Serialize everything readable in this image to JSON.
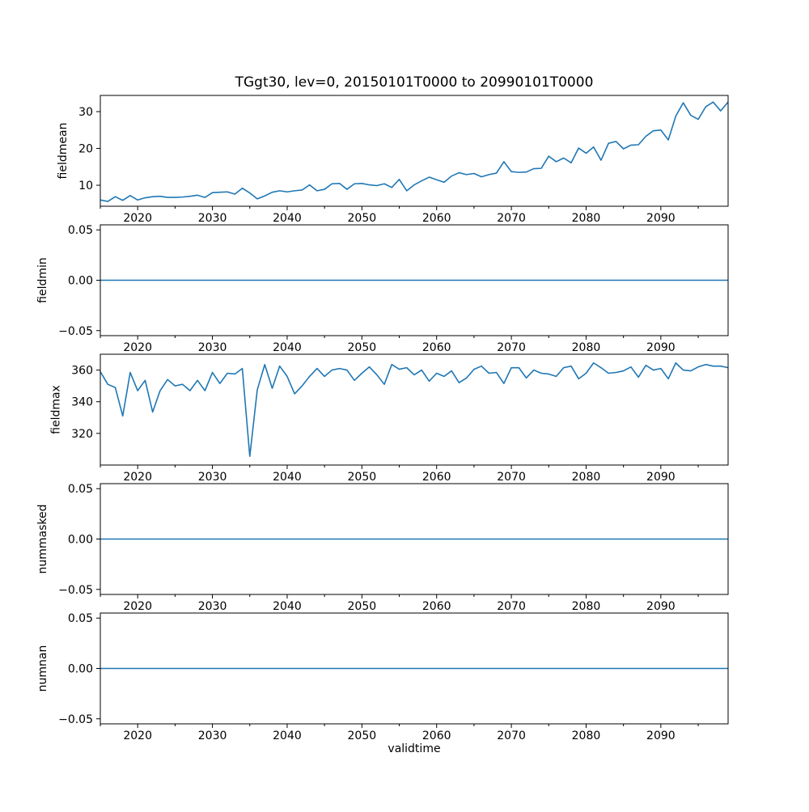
{
  "figure": {
    "title": "TGgt30, lev=0, 20150101T0000 to 20990101T0000",
    "xlabel": "validtime",
    "line_color": "#1f77b4",
    "background": "#ffffff"
  },
  "chart_data": {
    "type": "line",
    "title": "TGgt30, lev=0, 20150101T0000 to 20990101T0000",
    "xlabel": "validtime",
    "x_start_year": 2015,
    "x_end_year": 2099,
    "x_step": 1,
    "xlim": [
      2015,
      2099
    ],
    "x_major_ticks": [
      2020,
      2030,
      2040,
      2050,
      2060,
      2070,
      2080,
      2090
    ],
    "x_major_tick_labels": [
      "2020",
      "2030",
      "2040",
      "2050",
      "2060",
      "2070",
      "2080",
      "2090"
    ],
    "x_minor_ticks": [
      2015,
      2025,
      2035,
      2045,
      2055,
      2065,
      2075,
      2085,
      2095
    ],
    "grid": false,
    "legend": "none",
    "panels": [
      {
        "id": "fieldmean",
        "ylabel": "fieldmean",
        "ylim": [
          4.3,
          34.4
        ],
        "yticks": [
          10,
          20,
          30
        ],
        "ytick_labels": [
          "10",
          "20",
          "30"
        ],
        "values": [
          6.0,
          5.6,
          6.9,
          5.9,
          7.2,
          6.0,
          6.6,
          6.9,
          7.0,
          6.7,
          6.7,
          6.8,
          7.0,
          7.3,
          6.7,
          8.0,
          8.1,
          8.2,
          7.6,
          9.2,
          7.9,
          6.3,
          7.1,
          8.1,
          8.5,
          8.2,
          8.5,
          8.7,
          10.1,
          8.5,
          8.9,
          10.4,
          10.5,
          8.9,
          10.4,
          10.5,
          10.1,
          9.9,
          10.4,
          9.4,
          11.6,
          8.5,
          10.1,
          11.2,
          12.2,
          11.5,
          10.8,
          12.5,
          13.4,
          12.9,
          13.2,
          12.3,
          12.9,
          13.3,
          16.4,
          13.7,
          13.5,
          13.6,
          14.5,
          14.6,
          17.9,
          16.4,
          17.4,
          16.1,
          20.1,
          18.7,
          20.4,
          16.8,
          21.4,
          21.9,
          19.9,
          20.9,
          21.0,
          23.3,
          24.8,
          25.0,
          22.3,
          28.8,
          32.4,
          29.0,
          27.9,
          31.3,
          32.6,
          30.2,
          32.6
        ]
      },
      {
        "id": "fieldmin",
        "ylabel": "fieldmin",
        "ylim": [
          -0.055,
          0.055
        ],
        "yticks": [
          -0.05,
          0.0,
          0.05
        ],
        "ytick_labels": [
          "−0.05",
          "0.00",
          "0.05"
        ],
        "constant_value": 0
      },
      {
        "id": "fieldmax",
        "ylabel": "fieldmax",
        "ylim": [
          300,
          370
        ],
        "yticks": [
          320,
          340,
          360
        ],
        "ytick_labels": [
          "320",
          "340",
          "360"
        ],
        "values": [
          359,
          351,
          349,
          331,
          358.5,
          347,
          353.5,
          333.5,
          347,
          354,
          350,
          351,
          347,
          353.5,
          347,
          358.5,
          351.5,
          358,
          357.5,
          361,
          305.5,
          347.5,
          363.5,
          348.5,
          362.5,
          356,
          345,
          350,
          356,
          361,
          356,
          360,
          361,
          360,
          353.5,
          358,
          362,
          357,
          351,
          363.5,
          360.5,
          361.5,
          357,
          360,
          353,
          358,
          356,
          359.5,
          352,
          355,
          360.5,
          362.5,
          358,
          358.5,
          351.5,
          361.5,
          361.5,
          355,
          360,
          358,
          357.5,
          356,
          361.5,
          362.5,
          354.5,
          358,
          364.5,
          361.5,
          358,
          358.5,
          359.5,
          362,
          355.5,
          363,
          360,
          361,
          354.5,
          364.5,
          360,
          359.5,
          362,
          363.5,
          362.5,
          362.5,
          361.5
        ]
      },
      {
        "id": "nummasked",
        "ylabel": "nummasked",
        "ylim": [
          -0.055,
          0.055
        ],
        "yticks": [
          -0.05,
          0.0,
          0.05
        ],
        "ytick_labels": [
          "−0.05",
          "0.00",
          "0.05"
        ],
        "constant_value": 0
      },
      {
        "id": "numnan",
        "ylabel": "numnan",
        "ylim": [
          -0.055,
          0.055
        ],
        "yticks": [
          -0.05,
          0.0,
          0.05
        ],
        "ytick_labels": [
          "−0.05",
          "0.00",
          "0.05"
        ],
        "constant_value": 0
      }
    ]
  }
}
